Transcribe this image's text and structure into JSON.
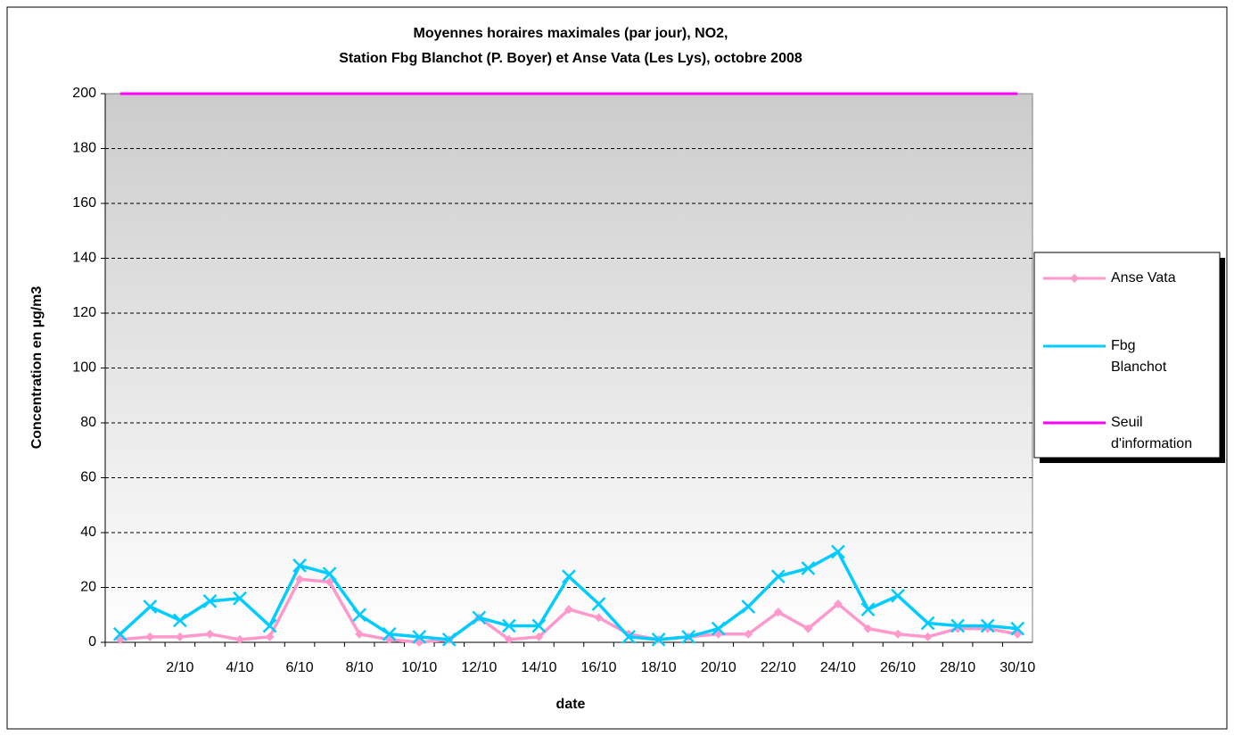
{
  "chart_data": {
    "type": "line",
    "title": [
      "Moyennes horaires maximales (par jour), NO2,",
      "Station Fbg Blanchot (P. Boyer) et Anse Vata (Les Lys), octobre 2008"
    ],
    "x_label": "date",
    "y_label": "Concentration en µg/m3",
    "categories": [
      null,
      null,
      "2/10",
      null,
      "4/10",
      null,
      "6/10",
      null,
      "8/10",
      null,
      "10/10",
      null,
      "12/10",
      null,
      "14/10",
      null,
      "16/10",
      null,
      "18/10",
      null,
      "20/10",
      null,
      "22/10",
      null,
      "24/10",
      null,
      "26/10",
      null,
      "28/10",
      null,
      "30/10"
    ],
    "series": [
      {
        "name": "Anse Vata",
        "color": "#ff99cc",
        "marker": "diamond",
        "values": [
          1,
          2,
          2,
          3,
          1,
          2,
          23,
          22,
          3,
          1,
          0,
          1,
          9,
          1,
          2,
          12,
          9,
          3,
          1,
          2,
          3,
          3,
          11,
          5,
          14,
          5,
          3,
          2,
          5,
          5,
          3
        ]
      },
      {
        "name": "Fbg Blanchot",
        "color": "#00ccff",
        "marker": "x",
        "values": [
          3,
          13,
          8,
          15,
          16,
          6,
          28,
          25,
          10,
          3,
          2,
          1,
          9,
          6,
          6,
          24,
          14,
          2,
          1,
          2,
          5,
          13,
          24,
          27,
          33,
          12,
          17,
          7,
          6,
          6,
          5
        ]
      },
      {
        "name": "Seuil d'information",
        "color": "#ff00ff",
        "marker": "none",
        "values": [
          200,
          200,
          200,
          200,
          200,
          200,
          200,
          200,
          200,
          200,
          200,
          200,
          200,
          200,
          200,
          200,
          200,
          200,
          200,
          200,
          200,
          200,
          200,
          200,
          200,
          200,
          200,
          200,
          200,
          200,
          200
        ]
      }
    ],
    "ylim": [
      0,
      200
    ],
    "yticks": [
      0,
      20,
      40,
      60,
      80,
      100,
      120,
      140,
      160,
      180,
      200
    ],
    "grid": true,
    "legend": "right"
  }
}
